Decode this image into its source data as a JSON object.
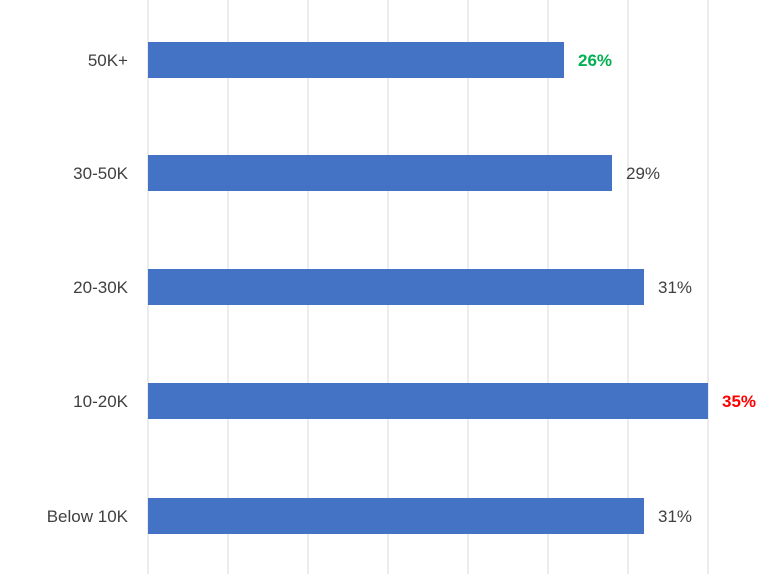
{
  "chart_data": {
    "type": "bar",
    "orientation": "horizontal",
    "categories": [
      "50K+",
      "30-50K",
      "20-30K",
      "10-20K",
      "Below 10K"
    ],
    "values": [
      26,
      29,
      31,
      35,
      31
    ],
    "value_labels": [
      "26%",
      "29%",
      "31%",
      "35%",
      "31%"
    ],
    "label_colors": [
      "#00B050",
      "#404040",
      "#404040",
      "#FF0000",
      "#404040"
    ],
    "label_bold": [
      true,
      false,
      false,
      true,
      false
    ],
    "bar_color": "#4472C4",
    "grid_color": "#D9D9D9",
    "xlim": [
      0,
      35
    ],
    "grid": true,
    "title": "",
    "xlabel": "",
    "ylabel": ""
  }
}
